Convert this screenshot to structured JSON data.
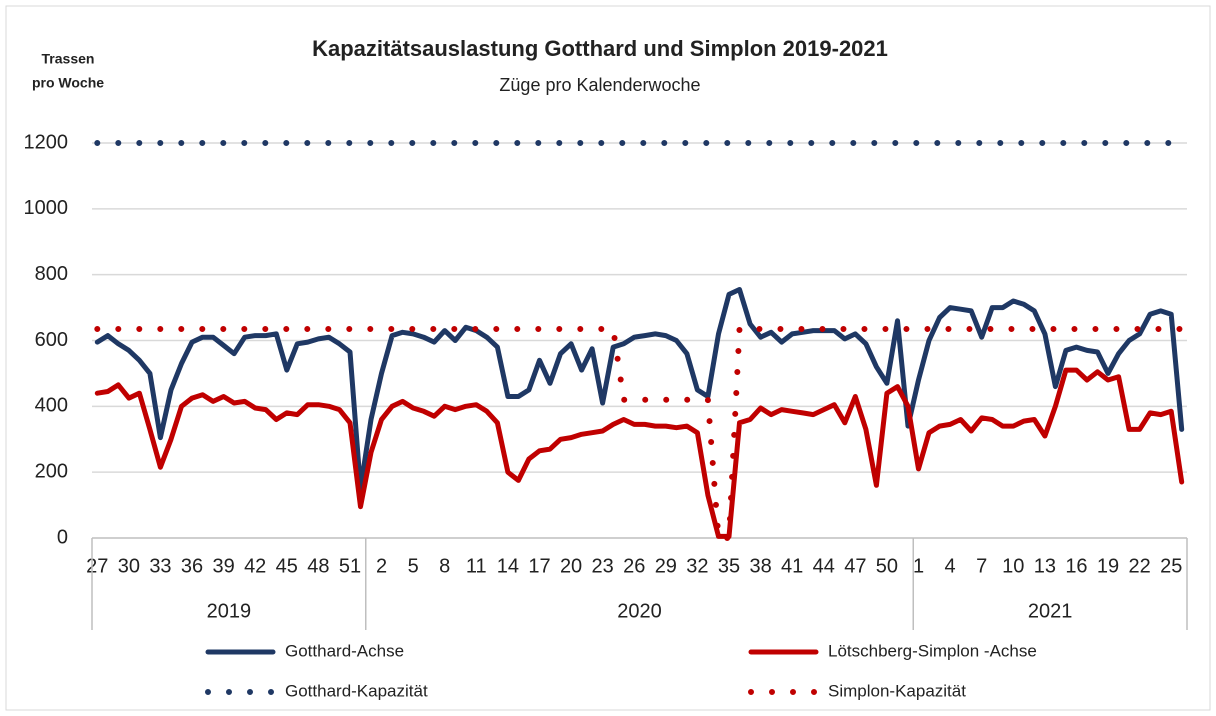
{
  "chart_data": {
    "type": "line",
    "title": "Kapazitätsauslastung Gotthard und Simplon 2019-2021",
    "subtitle": "Züge pro  Kalenderwoche",
    "ylabel_lines": [
      "Trassen",
      "pro Woche"
    ],
    "categories": [
      "27",
      null,
      null,
      "30",
      null,
      null,
      "33",
      null,
      null,
      "36",
      null,
      null,
      "39",
      null,
      null,
      "42",
      null,
      null,
      "45",
      null,
      null,
      "48",
      null,
      null,
      "51",
      null,
      null,
      "2",
      null,
      null,
      "5",
      null,
      null,
      "8",
      null,
      null,
      "11",
      null,
      null,
      "14",
      null,
      null,
      "17",
      null,
      null,
      "20",
      null,
      null,
      "23",
      null,
      null,
      "26",
      null,
      null,
      "29",
      null,
      null,
      "32",
      null,
      null,
      "35",
      null,
      null,
      "38",
      null,
      null,
      "41",
      null,
      null,
      "44",
      null,
      null,
      "47",
      null,
      null,
      "50",
      null,
      null,
      "1",
      null,
      null,
      "4",
      null,
      null,
      "7",
      null,
      null,
      "10",
      null,
      null,
      "13",
      null,
      null,
      "16",
      null,
      null,
      "19",
      null,
      null,
      "22",
      null,
      null,
      "25",
      null
    ],
    "groups": [
      {
        "label": "2019",
        "size": 26
      },
      {
        "label": "2020",
        "size": 52
      },
      {
        "label": "2021",
        "size": 26
      }
    ],
    "ylim": [
      0,
      1200
    ],
    "yticks": [
      0,
      200,
      400,
      600,
      800,
      1000,
      1200
    ],
    "grid": true,
    "series": [
      {
        "name": "Gotthard-Achse",
        "color": "#1f3864",
        "style": "solid",
        "values": [
          595,
          615,
          590,
          570,
          540,
          500,
          305,
          450,
          530,
          595,
          610,
          610,
          585,
          560,
          610,
          615,
          615,
          620,
          510,
          590,
          595,
          605,
          610,
          590,
          565,
          150,
          360,
          500,
          615,
          625,
          620,
          610,
          595,
          630,
          600,
          640,
          630,
          610,
          580,
          430,
          430,
          450,
          540,
          470,
          560,
          590,
          510,
          575,
          410,
          580,
          590,
          610,
          615,
          620,
          615,
          600,
          560,
          450,
          430,
          620,
          740,
          755,
          650,
          610,
          625,
          595,
          620,
          625,
          630,
          630,
          630,
          605,
          620,
          590,
          520,
          470,
          660,
          340,
          480,
          600,
          670,
          700,
          695,
          690,
          610,
          700,
          700,
          720,
          710,
          690,
          620,
          460,
          570,
          580,
          570,
          565,
          500,
          560,
          600,
          620,
          680,
          690,
          680,
          330
        ]
      },
      {
        "name": "Lötschberg-Simplon -Achse",
        "color": "#c00000",
        "style": "solid",
        "values": [
          440,
          445,
          465,
          425,
          440,
          330,
          215,
          300,
          400,
          425,
          435,
          415,
          430,
          410,
          415,
          395,
          390,
          360,
          380,
          375,
          405,
          405,
          400,
          390,
          350,
          95,
          260,
          360,
          400,
          415,
          395,
          385,
          370,
          400,
          390,
          400,
          405,
          385,
          350,
          200,
          175,
          240,
          265,
          270,
          300,
          305,
          315,
          320,
          325,
          345,
          360,
          345,
          345,
          340,
          340,
          335,
          340,
          320,
          130,
          5,
          5,
          350,
          360,
          395,
          375,
          390,
          385,
          380,
          375,
          390,
          405,
          350,
          430,
          330,
          160,
          440,
          460,
          400,
          210,
          320,
          340,
          345,
          360,
          325,
          365,
          360,
          340,
          340,
          355,
          360,
          310,
          400,
          510,
          510,
          480,
          505,
          480,
          490,
          330,
          330,
          380,
          375,
          385,
          170
        ]
      },
      {
        "name": "Gotthard-Kapazität",
        "color": "#1f3864",
        "style": "dotted",
        "values": [
          1200,
          1200,
          1200,
          1200,
          1200,
          1200,
          1200,
          1200,
          1200,
          1200,
          1200,
          1200,
          1200,
          1200,
          1200,
          1200,
          1200,
          1200,
          1200,
          1200,
          1200,
          1200,
          1200,
          1200,
          1200,
          1200,
          1200,
          1200,
          1200,
          1200,
          1200,
          1200,
          1200,
          1200,
          1200,
          1200,
          1200,
          1200,
          1200,
          1200,
          1200,
          1200,
          1200,
          1200,
          1200,
          1200,
          1200,
          1200,
          1200,
          1200,
          1200,
          1200,
          1200,
          1200,
          1200,
          1200,
          1200,
          1200,
          1200,
          1200,
          1200,
          1200,
          1200,
          1200,
          1200,
          1200,
          1200,
          1200,
          1200,
          1200,
          1200,
          1200,
          1200,
          1200,
          1200,
          1200,
          1200,
          1200,
          1200,
          1200,
          1200,
          1200,
          1200,
          1200,
          1200,
          1200,
          1200,
          1200,
          1200,
          1200,
          1200,
          1200,
          1200,
          1200,
          1200,
          1200,
          1200,
          1200,
          1200,
          1200,
          1200,
          1200,
          1200,
          1200
        ]
      },
      {
        "name": "Simplon-Kapazität",
        "color": "#c00000",
        "style": "dotted",
        "values": [
          635,
          635,
          635,
          635,
          635,
          635,
          635,
          635,
          635,
          635,
          635,
          635,
          635,
          635,
          635,
          635,
          635,
          635,
          635,
          635,
          635,
          635,
          635,
          635,
          635,
          635,
          635,
          635,
          635,
          635,
          635,
          635,
          635,
          635,
          635,
          635,
          635,
          635,
          635,
          635,
          635,
          635,
          635,
          635,
          635,
          635,
          635,
          635,
          635,
          635,
          420,
          420,
          420,
          420,
          420,
          420,
          420,
          420,
          420,
          0,
          0,
          635,
          635,
          635,
          635,
          635,
          635,
          635,
          635,
          635,
          635,
          635,
          635,
          635,
          635,
          635,
          635,
          635,
          635,
          635,
          635,
          635,
          635,
          635,
          635,
          635,
          635,
          635,
          635,
          635,
          635,
          635,
          635,
          635,
          635,
          635,
          635,
          635,
          635,
          635,
          635,
          635,
          635,
          635
        ]
      }
    ]
  }
}
